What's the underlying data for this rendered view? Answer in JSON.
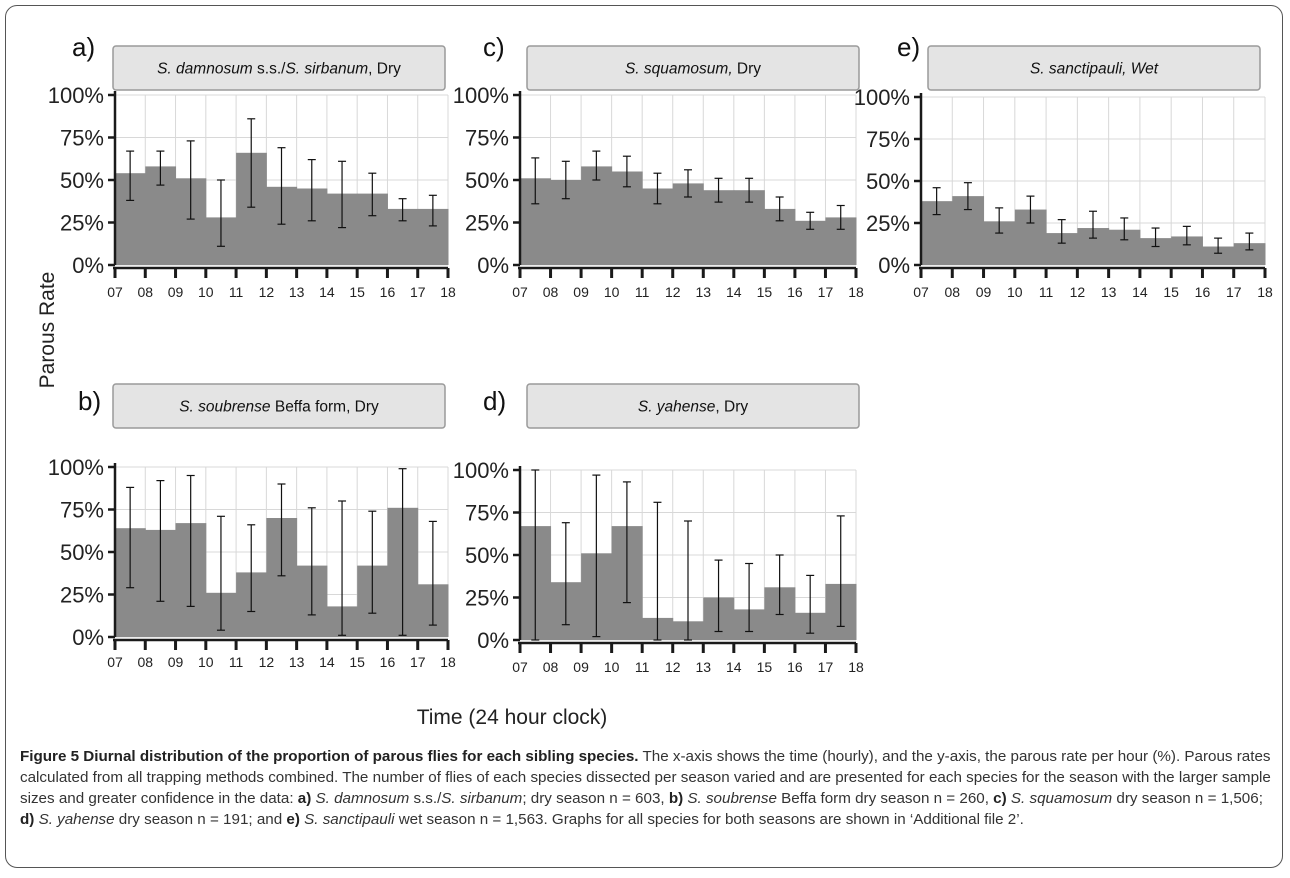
{
  "figure": {
    "x_axis_label": "Time (24 hour clock)",
    "y_axis_label": "Parous Rate",
    "caption": {
      "title": "Figure 5 Diurnal distribution of the proportion of parous flies for each sibling species.",
      "body": " The x-axis shows the time (hourly), and the y-axis, the parous rate per hour (%). Parous rates calculated from all trapping methods combined. The number of flies of each species dissected per season varied and are presented for each species for the season with the larger sample sizes and greater confidence in the data: ",
      "items": [
        {
          "letter": "a)",
          "species": "S. damnosum",
          "extra_plain": " s.s./",
          "species2": "S. sirbanum",
          "text": "; dry season n = 603, "
        },
        {
          "letter": "b)",
          "species": "S. soubrense",
          "extra_plain": " Beffa form dry season n = 260, ",
          "species2": "",
          "text": ""
        },
        {
          "letter": "c)",
          "species": "S. squamosum",
          "extra_plain": " dry season n = 1,506; ",
          "species2": "",
          "text": ""
        },
        {
          "letter": "d)",
          "species": "S. yahense",
          "extra_plain": " dry season n = 191; and ",
          "species2": "",
          "text": ""
        },
        {
          "letter": "e)",
          "species": "S. sanctipauli",
          "extra_plain": " wet season n = 1,563. Graphs for all species for both seasons are shown in ‘Additional file 2’.",
          "species2": "",
          "text": ""
        }
      ]
    },
    "colors": {
      "bar": "#8a8a8a",
      "header_bg": "#e4e4e4",
      "axis": "#1a1a1a",
      "grid": "#d8d8d8",
      "error": "#111111"
    }
  },
  "chart_data": [
    {
      "type": "bar",
      "panel_letter": "a)",
      "title": {
        "italic1": "S. damnosum",
        "plain1": " s.s./",
        "italic2": "S. sirbanum",
        "plain2": ", Dry"
      },
      "x_ticks": [
        "07",
        "08",
        "09",
        "10",
        "11",
        "12",
        "13",
        "14",
        "15",
        "16",
        "17",
        "18"
      ],
      "y_ticks": [
        "0%",
        "25%",
        "50%",
        "75%",
        "100%"
      ],
      "ylim": [
        0,
        100
      ],
      "values": [
        54,
        58,
        51,
        28,
        66,
        46,
        45,
        42,
        42,
        33,
        33
      ],
      "err_low": [
        38,
        47,
        27,
        11,
        34,
        24,
        26,
        22,
        29,
        26,
        23
      ],
      "err_high": [
        67,
        67,
        73,
        50,
        86,
        69,
        62,
        61,
        54,
        39,
        41
      ]
    },
    {
      "type": "bar",
      "panel_letter": "b)",
      "title": {
        "italic1": "S. soubrense",
        "plain1": " Beffa form, Dry",
        "italic2": "",
        "plain2": ""
      },
      "x_ticks": [
        "07",
        "08",
        "09",
        "10",
        "11",
        "12",
        "13",
        "14",
        "15",
        "16",
        "17",
        "18"
      ],
      "y_ticks": [
        "0%",
        "25%",
        "50%",
        "75%",
        "100%"
      ],
      "ylim": [
        0,
        100
      ],
      "values": [
        64,
        63,
        67,
        26,
        38,
        70,
        42,
        18,
        42,
        76,
        31
      ],
      "err_low": [
        29,
        21,
        18,
        4,
        15,
        36,
        13,
        1,
        14,
        1,
        7
      ],
      "err_high": [
        88,
        92,
        95,
        71,
        66,
        90,
        76,
        80,
        74,
        99,
        68
      ]
    },
    {
      "type": "bar",
      "panel_letter": "c)",
      "title": {
        "italic1": "S. squamosum,",
        "plain1": " Dry",
        "italic2": "",
        "plain2": ""
      },
      "x_ticks": [
        "07",
        "08",
        "09",
        "10",
        "11",
        "12",
        "13",
        "14",
        "15",
        "16",
        "17",
        "18"
      ],
      "y_ticks": [
        "0%",
        "25%",
        "50%",
        "75%",
        "100%"
      ],
      "ylim": [
        0,
        100
      ],
      "values": [
        51,
        50,
        58,
        55,
        45,
        48,
        44,
        44,
        33,
        26,
        28
      ],
      "err_low": [
        36,
        39,
        50,
        46,
        36,
        40,
        37,
        37,
        26,
        21,
        21
      ],
      "err_high": [
        63,
        61,
        67,
        64,
        54,
        56,
        51,
        51,
        40,
        31,
        35
      ]
    },
    {
      "type": "bar",
      "panel_letter": "d)",
      "title": {
        "italic1": "S. yahense",
        "plain1": ", Dry",
        "italic2": "",
        "plain2": ""
      },
      "x_ticks": [
        "07",
        "08",
        "09",
        "10",
        "11",
        "12",
        "13",
        "14",
        "15",
        "16",
        "17",
        "18"
      ],
      "y_ticks": [
        "0%",
        "25%",
        "50%",
        "75%",
        "100%"
      ],
      "ylim": [
        0,
        100
      ],
      "values": [
        67,
        34,
        51,
        67,
        13,
        11,
        25,
        18,
        31,
        16,
        33
      ],
      "err_low": [
        0,
        9,
        2,
        22,
        0,
        0,
        5,
        5,
        15,
        4,
        8
      ],
      "err_high": [
        100,
        69,
        97,
        93,
        81,
        70,
        47,
        45,
        50,
        38,
        73
      ]
    },
    {
      "type": "bar",
      "panel_letter": "e)",
      "title": {
        "italic1": "S. sanctipauli, Wet",
        "plain1": "",
        "italic2": "",
        "plain2": ""
      },
      "x_ticks": [
        "07",
        "08",
        "09",
        "10",
        "11",
        "12",
        "13",
        "14",
        "15",
        "16",
        "17",
        "18"
      ],
      "y_ticks": [
        "0%",
        "25%",
        "50%",
        "75%",
        "100%"
      ],
      "ylim": [
        0,
        100
      ],
      "values": [
        38,
        41,
        26,
        33,
        19,
        22,
        21,
        16,
        17,
        11,
        13
      ],
      "err_low": [
        30,
        33,
        19,
        25,
        13,
        16,
        15,
        11,
        12,
        7,
        9
      ],
      "err_high": [
        46,
        49,
        34,
        41,
        27,
        32,
        28,
        22,
        23,
        16,
        19
      ]
    }
  ]
}
